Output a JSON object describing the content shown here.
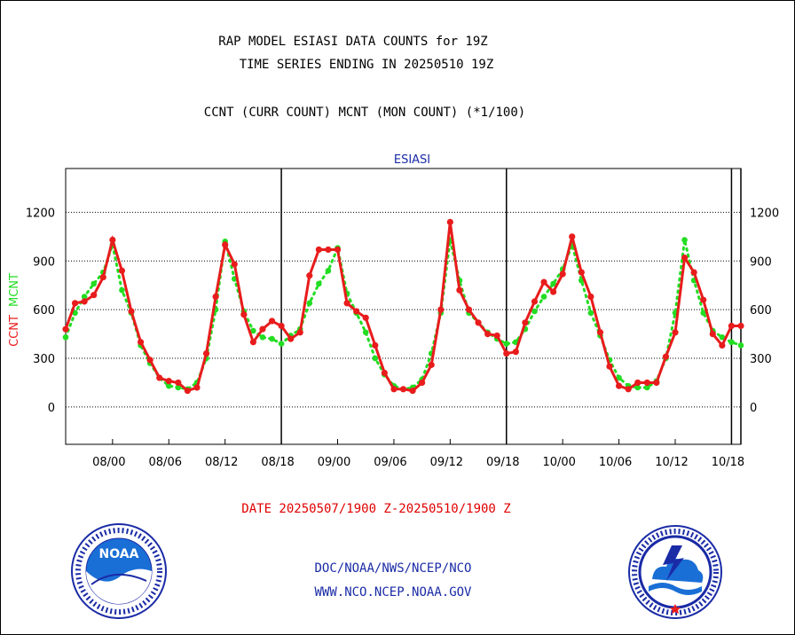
{
  "header": {
    "title_line1": "RAP MODEL ESIASI DATA COUNTS for 19Z",
    "title_line2": "TIME SERIES ENDING IN 20250510 19Z",
    "subtitle": "CCNT (CURR COUNT) MCNT (MON COUNT) (*1/100)"
  },
  "footer": {
    "date_range": "DATE 20250507/1900 Z-20250510/1900 Z",
    "line1": "DOC/NOAA/NWS/NCEP/NCO",
    "line2": "WWW.NCO.NCEP.NOAA.GOV"
  },
  "logos": {
    "left": {
      "icon": "noaa-logo",
      "text": "NOAA"
    },
    "right": {
      "icon": "national-weather-service-logo"
    }
  },
  "colors": {
    "ccnt": "#e81c1c",
    "mcnt": "#22dd22",
    "panel_label": "#1a2ba6",
    "date_text": "#e00000"
  },
  "chart_data": {
    "type": "line",
    "title": "ESIASI",
    "ylabel_left_1": "CCNT",
    "ylabel_left_2": "MCNT",
    "ylim": [
      -230,
      1470
    ],
    "yticks": [
      0,
      300,
      600,
      900,
      1200
    ],
    "xticks": [
      "08/00",
      "08/06",
      "08/12",
      "08/18",
      "09/00",
      "09/06",
      "09/12",
      "09/18",
      "10/00",
      "10/06",
      "10/12",
      "10/18"
    ],
    "x_start": "05/07 19Z",
    "x_end": "05/10 19Z",
    "x_hours_span": [
      -5,
      67
    ],
    "day_boundaries": [
      "08/18",
      "09/18",
      "10/18"
    ],
    "grid": "horizontal dotted",
    "series": [
      {
        "name": "CCNT",
        "style": "solid line with dots",
        "x": [
          -5,
          -4,
          -3,
          -2,
          -1,
          0,
          1,
          2,
          3,
          4,
          5,
          6,
          7,
          8,
          9,
          10,
          11,
          12,
          13,
          14,
          15,
          16,
          17,
          18,
          19,
          20,
          21,
          22,
          23,
          24,
          25,
          26,
          27,
          28,
          29,
          30,
          31,
          32,
          33,
          34,
          35,
          36,
          37,
          38,
          39,
          40,
          41,
          42,
          43,
          44,
          45,
          46,
          47,
          48,
          49,
          50,
          51,
          52,
          53,
          54,
          55,
          56,
          57,
          58,
          59,
          60,
          61,
          62,
          63,
          64,
          65,
          66,
          67
        ],
        "values": [
          480,
          640,
          650,
          690,
          800,
          1030,
          840,
          590,
          400,
          290,
          180,
          160,
          150,
          100,
          120,
          330,
          680,
          1000,
          880,
          570,
          400,
          480,
          530,
          500,
          420,
          460,
          810,
          970,
          970,
          970,
          640,
          590,
          550,
          380,
          210,
          110,
          110,
          100,
          150,
          260,
          600,
          1140,
          720,
          600,
          520,
          450,
          440,
          330,
          340,
          520,
          650,
          770,
          710,
          820,
          1050,
          830,
          680,
          460,
          250,
          130,
          110,
          150,
          150,
          150,
          310,
          460,
          920,
          830,
          660,
          450,
          380,
          500,
          500
        ]
      },
      {
        "name": "MCNT",
        "style": "dotted line",
        "x": [
          -5,
          -4,
          -3,
          -2,
          -1,
          0,
          1,
          2,
          3,
          4,
          5,
          6,
          7,
          8,
          9,
          10,
          11,
          12,
          13,
          14,
          15,
          16,
          17,
          18,
          19,
          20,
          21,
          22,
          23,
          24,
          25,
          26,
          27,
          28,
          29,
          30,
          31,
          32,
          33,
          34,
          35,
          36,
          37,
          38,
          39,
          40,
          41,
          42,
          43,
          44,
          45,
          46,
          47,
          48,
          49,
          50,
          51,
          52,
          53,
          54,
          55,
          56,
          57,
          58,
          59,
          60,
          61,
          62,
          63,
          64,
          65,
          66,
          67
        ],
        "values": [
          430,
          580,
          680,
          760,
          830,
          1000,
          720,
          580,
          380,
          270,
          180,
          130,
          120,
          110,
          150,
          300,
          600,
          1020,
          790,
          590,
          470,
          430,
          420,
          390,
          440,
          480,
          640,
          760,
          840,
          980,
          700,
          580,
          460,
          300,
          200,
          130,
          110,
          120,
          170,
          330,
          580,
          1030,
          780,
          580,
          520,
          460,
          420,
          390,
          400,
          480,
          590,
          680,
          760,
          850,
          1000,
          780,
          580,
          440,
          290,
          180,
          130,
          120,
          120,
          160,
          300,
          580,
          1030,
          780,
          580,
          470,
          430,
          400,
          380
        ]
      }
    ]
  }
}
